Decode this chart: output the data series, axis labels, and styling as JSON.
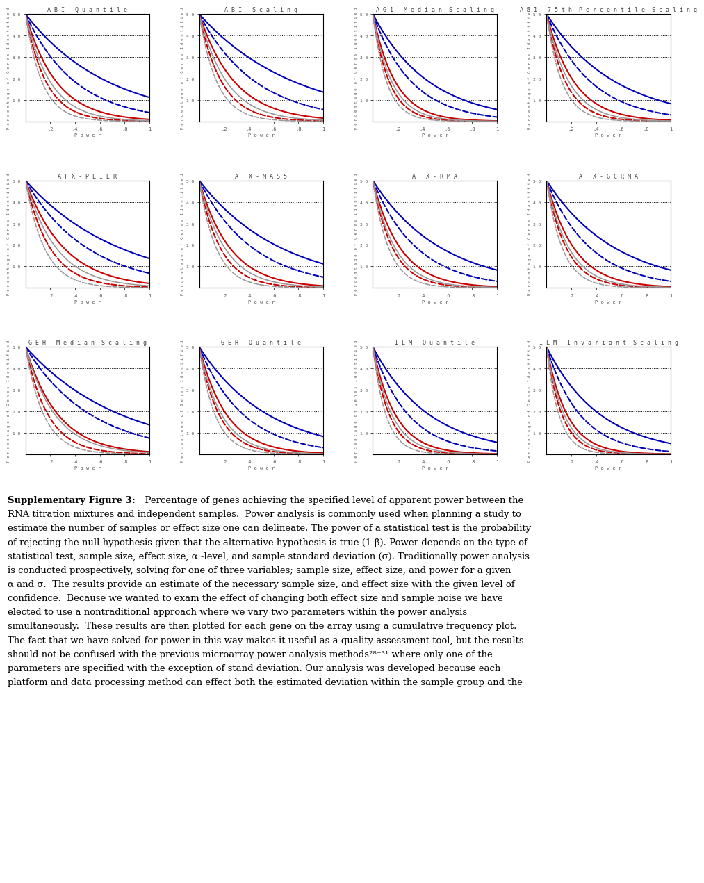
{
  "subplots": [
    {
      "title": "A B I - Q u a n t i l e",
      "row": 0,
      "col": 0
    },
    {
      "title": "A B I - S c a l i n g",
      "row": 0,
      "col": 1
    },
    {
      "title": "A G 1 - M e d i a n  S c a l i n g",
      "row": 0,
      "col": 2
    },
    {
      "title": "A G 1 - 7 5 t h  P e r c e n t i l e  S c a l i n g",
      "row": 0,
      "col": 3
    },
    {
      "title": "A F X - P L I E R",
      "row": 1,
      "col": 0
    },
    {
      "title": "A F X - M A S 5",
      "row": 1,
      "col": 1
    },
    {
      "title": "A F X - R M A",
      "row": 1,
      "col": 2
    },
    {
      "title": "A F X - G C R M A",
      "row": 1,
      "col": 3
    },
    {
      "title": "G E H - M e d i a n  S c a l i n g",
      "row": 2,
      "col": 0
    },
    {
      "title": "G E H - Q u a n t i l e",
      "row": 2,
      "col": 1
    },
    {
      "title": "I L M - Q u a n t i l e",
      "row": 2,
      "col": 2
    },
    {
      "title": "I L M - I n v a r i a n t  S c a l i n g",
      "row": 2,
      "col": 3
    }
  ],
  "curve_styles": [
    {
      "color": "#0000BB",
      "ls": "solid",
      "lw": 1.5
    },
    {
      "color": "#0000BB",
      "ls": "dashed",
      "lw": 1.5
    },
    {
      "color": "#CC0000",
      "ls": "solid",
      "lw": 1.5
    },
    {
      "color": "#CC0000",
      "ls": "dashed",
      "lw": 1.5
    },
    {
      "color": "#999999",
      "ls": "solid",
      "lw": 1.2
    },
    {
      "color": "#999999",
      "ls": "dashed",
      "lw": 1.2
    }
  ],
  "curve_params": {
    "0,0": [
      1.5,
      2.5,
      4.0,
      6.0,
      5.0,
      7.5
    ],
    "0,1": [
      1.3,
      2.2,
      3.5,
      5.5,
      4.5,
      7.0
    ],
    "0,2": [
      2.2,
      3.2,
      5.5,
      7.5,
      6.5,
      9.0
    ],
    "0,3": [
      1.8,
      2.8,
      4.5,
      6.5,
      5.5,
      8.0
    ],
    "1,0": [
      1.3,
      2.0,
      3.2,
      5.0,
      4.0,
      6.5
    ],
    "1,1": [
      1.5,
      2.3,
      4.0,
      5.8,
      4.8,
      7.2
    ],
    "1,2": [
      1.8,
      2.8,
      4.5,
      6.2,
      5.5,
      7.8
    ],
    "1,3": [
      1.8,
      2.8,
      4.5,
      6.2,
      5.5,
      7.8
    ],
    "2,0": [
      1.3,
      1.9,
      3.8,
      5.5,
      4.2,
      6.8
    ],
    "2,1": [
      1.8,
      2.8,
      4.5,
      6.2,
      5.5,
      7.8
    ],
    "2,2": [
      2.2,
      3.5,
      5.5,
      7.5,
      6.5,
      9.5
    ],
    "2,3": [
      2.3,
      3.7,
      6.0,
      8.0,
      7.0,
      10.0
    ]
  },
  "hlines": [
    10,
    20,
    30,
    40
  ],
  "xlim": [
    0.0,
    1.0
  ],
  "ylim": [
    0,
    50
  ],
  "background": "#ffffff",
  "caption_bold": "Supplementary Figure 3:",
  "caption_rest": "  Percentage of genes achieving the specified level of apparent power between the RNA titration mixtures and independent samples.  Power analysis is commonly used when planning a study to estimate the number of samples or effect size one can delineate. The power of a statistical test is the probability of rejecting the null hypothesis given that the alternative hypothesis is true (1-β). Power depends on the type of statistical test, sample size, effect size, α -level, and sample standard deviation (σ). Traditionally power analysis is conducted prospectively, solving for one of three variables; sample size, effect size, and power for a given α and σ.  The results provide an estimate of the necessary sample size, and effect size with the given level of confidence.  Because we wanted to exam the effect of changing both effect size and sample noise we have elected to use a nontraditional approach where we vary two parameters within the power analysis simultaneously.  These results are then plotted for each gene on the array using a cumulative frequency plot. The fact that we have solved for power in this way makes it useful as a quality assessment tool, but the results should not be confused with the previous microarray power analysis methods²⁸⁻³¹ where only one of the parameters are specified with the exception of stand deviation. Our analysis was developed because each platform and data processing method can effect both the estimated deviation within the sample group and the"
}
